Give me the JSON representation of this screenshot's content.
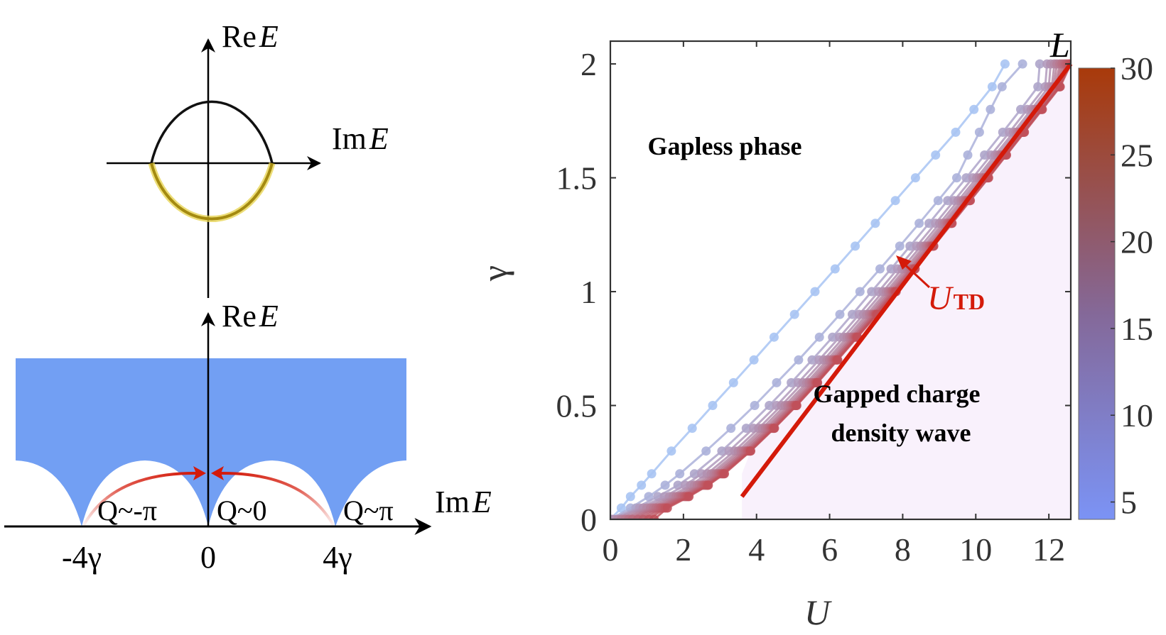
{
  "left_panel": {
    "top_diagram": {
      "y_axis_label": {
        "prefix": "Re",
        "var": "E"
      },
      "x_axis_label": {
        "prefix": "Im",
        "var": "E"
      },
      "upper_arc_color": "#111111",
      "lower_arc_color": "#B39A1E",
      "lower_arc_glow": "#E6D24A"
    },
    "bottom_diagram": {
      "y_axis_label": {
        "prefix": "Re",
        "var": "E"
      },
      "x_axis_label": {
        "prefix": "Im",
        "var": "E"
      },
      "region_color": "#729FF3",
      "arrow_color": "#D41A0A",
      "q_labels": [
        "Q~-π",
        "Q~0",
        "Q~π"
      ],
      "x_ticks": [
        "-4γ",
        "0",
        "4γ"
      ]
    }
  },
  "chart_data": {
    "type": "line",
    "xlabel": "U",
    "ylabel": "γ",
    "xlim": [
      0,
      12.6
    ],
    "ylim": [
      0,
      2.1
    ],
    "xticks": [
      0,
      2,
      4,
      6,
      8,
      10,
      12
    ],
    "xtick_labels": [
      "0",
      "2",
      "4",
      "6",
      "8",
      "10",
      "12"
    ],
    "yticks": [
      0,
      0.5,
      1,
      1.5,
      2
    ],
    "ytick_labels": [
      "0",
      "0.5",
      "1",
      "1.5",
      "2"
    ],
    "grid": false,
    "annotations": {
      "gapless": "Gapless phase",
      "gapped_line1": "Gapped charge",
      "gapped_line2": "density wave",
      "utd_main": "U",
      "utd_sub": "TD"
    },
    "gapped_region_color": "#F9F1FC",
    "colorbar": {
      "label": "L",
      "range": [
        4,
        30
      ],
      "ticks": [
        5,
        10,
        15,
        20,
        25,
        30
      ],
      "tick_labels": [
        "5",
        "10",
        "15",
        "20",
        "25",
        "30"
      ],
      "color_low": "#7B93F5",
      "color_high": "#A93A0A",
      "location": "right"
    },
    "utd_line": {
      "name": "U_TD",
      "color": "#D41A0A",
      "x": [
        3.6,
        12.6
      ],
      "y": [
        0.1,
        2.0
      ]
    },
    "series_color_low": "#A8C4F3",
    "series_color_high": "#C0505A",
    "series": [
      {
        "name": "L=4",
        "L": 4,
        "gamma": [
          0,
          0.05,
          0.1,
          0.15,
          0.2,
          0.3,
          0.4,
          0.5,
          0.6,
          0.7,
          0.8,
          0.9,
          1.0,
          1.1,
          1.2,
          1.3,
          1.4,
          1.5,
          1.6,
          1.7,
          1.8,
          1.9,
          2.0
        ],
        "U": [
          0,
          0.3,
          0.55,
          0.85,
          1.13,
          1.67,
          2.24,
          2.8,
          3.37,
          3.93,
          4.48,
          5.04,
          5.6,
          6.15,
          6.7,
          7.25,
          7.8,
          8.35,
          8.9,
          9.45,
          9.95,
          10.45,
          10.8
        ]
      },
      {
        "name": "L=6",
        "L": 6,
        "gamma": [
          0,
          0.05,
          0.1,
          0.15,
          0.2,
          0.3,
          0.4,
          0.5,
          0.6,
          0.7,
          0.8,
          0.9,
          1.0,
          1.1,
          1.2,
          1.3,
          1.4,
          1.5,
          1.6,
          1.7,
          1.8,
          1.9,
          2.0
        ],
        "U": [
          0,
          0.55,
          1.05,
          1.5,
          1.9,
          2.62,
          3.3,
          3.95,
          4.55,
          5.15,
          5.72,
          6.28,
          6.83,
          7.38,
          7.92,
          8.45,
          8.97,
          9.48,
          9.78,
          10.1,
          10.4,
          10.72,
          11.28
        ]
      },
      {
        "name": "L=8",
        "L": 8,
        "gamma": [
          0,
          0.05,
          0.1,
          0.15,
          0.2,
          0.3,
          0.4,
          0.5,
          0.6,
          0.7,
          0.8,
          0.9,
          1.0,
          1.1,
          1.2,
          1.3,
          1.4,
          1.5,
          1.6,
          1.7,
          1.8,
          1.9,
          2.0
        ],
        "U": [
          0,
          0.7,
          1.3,
          1.85,
          2.3,
          3.05,
          3.72,
          4.35,
          4.95,
          5.52,
          6.08,
          6.62,
          7.15,
          7.68,
          8.2,
          8.72,
          9.23,
          9.74,
          10.24,
          10.74,
          11.23,
          11.7,
          11.75
        ]
      },
      {
        "name": "L=10",
        "L": 10,
        "gamma": [
          0,
          0.05,
          0.1,
          0.15,
          0.2,
          0.3,
          0.4,
          0.5,
          0.6,
          0.7,
          0.8,
          0.9,
          1.0,
          1.1,
          1.2,
          1.3,
          1.4,
          1.5,
          1.6,
          1.7,
          1.8,
          1.9,
          2.0
        ],
        "U": [
          0.05,
          0.8,
          1.48,
          2.05,
          2.5,
          3.25,
          3.92,
          4.55,
          5.14,
          5.71,
          6.27,
          6.81,
          7.34,
          7.86,
          8.38,
          8.9,
          9.41,
          9.92,
          10.42,
          10.92,
          11.41,
          11.9,
          11.95
        ]
      },
      {
        "name": "L=12",
        "L": 12,
        "gamma": [
          0,
          0.05,
          0.1,
          0.15,
          0.2,
          0.3,
          0.4,
          0.5,
          0.6,
          0.7,
          0.8,
          0.9,
          1.0,
          1.1,
          1.2,
          1.3,
          1.4,
          1.5,
          1.6,
          1.7,
          1.8,
          1.9,
          2.0
        ],
        "U": [
          0.1,
          0.9,
          1.62,
          2.2,
          2.65,
          3.4,
          4.06,
          4.68,
          5.27,
          5.84,
          6.39,
          6.93,
          7.46,
          7.98,
          8.5,
          9.01,
          9.52,
          10.03,
          10.53,
          11.03,
          11.52,
          12.0,
          12.05
        ]
      },
      {
        "name": "L=14",
        "L": 14,
        "gamma": [
          0,
          0.05,
          0.1,
          0.15,
          0.2,
          0.3,
          0.4,
          0.5,
          0.6,
          0.7,
          0.8,
          0.9,
          1.0,
          1.1,
          1.2,
          1.3,
          1.4,
          1.5,
          1.6,
          1.7,
          1.8,
          1.9,
          2.0
        ],
        "U": [
          0.2,
          1.0,
          1.72,
          2.3,
          2.76,
          3.5,
          4.16,
          4.78,
          5.37,
          5.93,
          6.48,
          7.02,
          7.55,
          8.07,
          8.58,
          9.09,
          9.6,
          10.1,
          10.6,
          11.1,
          11.59,
          12.08,
          12.15
        ]
      },
      {
        "name": "L=16",
        "L": 16,
        "gamma": [
          0,
          0.05,
          0.1,
          0.15,
          0.2,
          0.3,
          0.4,
          0.5,
          0.6,
          0.7,
          0.8,
          0.9,
          1.0,
          1.1,
          1.2,
          1.3,
          1.4,
          1.5,
          1.6,
          1.7,
          1.8,
          1.9,
          2.0
        ],
        "U": [
          0.3,
          1.1,
          1.8,
          2.38,
          2.84,
          3.58,
          4.24,
          4.86,
          5.44,
          6.0,
          6.55,
          7.09,
          7.61,
          8.13,
          8.64,
          9.15,
          9.66,
          10.16,
          10.66,
          11.15,
          11.64,
          12.13,
          12.22
        ]
      },
      {
        "name": "L=18",
        "L": 18,
        "gamma": [
          0,
          0.05,
          0.1,
          0.15,
          0.2,
          0.3,
          0.4,
          0.5,
          0.6,
          0.7,
          0.8,
          0.9,
          1.0,
          1.1,
          1.2,
          1.3,
          1.4,
          1.5,
          1.6,
          1.7,
          1.8,
          1.9,
          2.0
        ],
        "U": [
          0.4,
          1.18,
          1.87,
          2.44,
          2.9,
          3.64,
          4.3,
          4.92,
          5.5,
          6.06,
          6.6,
          7.14,
          7.66,
          8.18,
          8.69,
          9.2,
          9.7,
          10.2,
          10.7,
          11.19,
          11.68,
          12.17,
          12.3
        ]
      },
      {
        "name": "L=20",
        "L": 20,
        "gamma": [
          0,
          0.05,
          0.1,
          0.15,
          0.2,
          0.3,
          0.4,
          0.5,
          0.6,
          0.7,
          0.8,
          0.9,
          1.0,
          1.1,
          1.2,
          1.3,
          1.4,
          1.5,
          1.6,
          1.7,
          1.8,
          1.9,
          2.0
        ],
        "U": [
          0.5,
          1.25,
          1.93,
          2.5,
          2.95,
          3.69,
          4.35,
          4.96,
          5.54,
          6.1,
          6.64,
          7.18,
          7.7,
          8.22,
          8.73,
          9.23,
          9.73,
          10.23,
          10.73,
          11.22,
          11.71,
          12.2,
          12.36
        ]
      },
      {
        "name": "L=22",
        "L": 22,
        "gamma": [
          0,
          0.05,
          0.1,
          0.15,
          0.2,
          0.3,
          0.4,
          0.5,
          0.6,
          0.7,
          0.8,
          0.9,
          1.0,
          1.1,
          1.2,
          1.3,
          1.4,
          1.5,
          1.6,
          1.7,
          1.8,
          1.9,
          2.0
        ],
        "U": [
          0.6,
          1.32,
          1.98,
          2.54,
          2.99,
          3.73,
          4.39,
          5.0,
          5.58,
          6.13,
          6.67,
          7.21,
          7.73,
          8.25,
          8.76,
          9.26,
          9.76,
          10.26,
          10.76,
          11.25,
          11.74,
          12.23,
          12.42
        ]
      },
      {
        "name": "L=24",
        "L": 24,
        "gamma": [
          0,
          0.05,
          0.1,
          0.15,
          0.2,
          0.3,
          0.4,
          0.5,
          0.6,
          0.7,
          0.8,
          0.9,
          1.0,
          1.1,
          1.2,
          1.3,
          1.4,
          1.5,
          1.6,
          1.7,
          1.8,
          1.9,
          2.0
        ],
        "U": [
          0.75,
          1.38,
          2.03,
          2.58,
          3.03,
          3.76,
          4.42,
          5.03,
          5.61,
          6.16,
          6.7,
          7.24,
          7.76,
          8.28,
          8.79,
          9.29,
          9.79,
          10.29,
          10.78,
          11.27,
          11.76,
          12.25,
          12.47
        ]
      },
      {
        "name": "L=26",
        "L": 26,
        "gamma": [
          0,
          0.05,
          0.1,
          0.15,
          0.2,
          0.3,
          0.4,
          0.5,
          0.6,
          0.7,
          0.8,
          0.9,
          1.0,
          1.1,
          1.2,
          1.3,
          1.4,
          1.5,
          1.6,
          1.7,
          1.8,
          1.9,
          2.0
        ],
        "U": [
          0.9,
          1.44,
          2.07,
          2.62,
          3.06,
          3.79,
          4.45,
          5.06,
          5.63,
          6.18,
          6.72,
          7.26,
          7.78,
          8.3,
          8.81,
          9.31,
          9.81,
          10.31,
          10.8,
          11.29,
          11.78,
          12.27,
          12.52
        ]
      },
      {
        "name": "L=28",
        "L": 28,
        "gamma": [
          0,
          0.05,
          0.1,
          0.15,
          0.2,
          0.3,
          0.4,
          0.5,
          0.6,
          0.7,
          0.8,
          0.9,
          1.0,
          1.1,
          1.2,
          1.3,
          1.4,
          1.5,
          1.6,
          1.7,
          1.8,
          1.9,
          2.0
        ],
        "U": [
          1.05,
          1.5,
          2.11,
          2.65,
          3.09,
          3.82,
          4.47,
          5.08,
          5.65,
          6.2,
          6.74,
          7.28,
          7.8,
          8.32,
          8.83,
          9.33,
          9.83,
          10.33,
          10.82,
          11.31,
          11.8,
          12.29,
          12.56
        ]
      },
      {
        "name": "L=30",
        "L": 30,
        "gamma": [
          0,
          0.05,
          0.1,
          0.15,
          0.2,
          0.3,
          0.4,
          0.5,
          0.6,
          0.7,
          0.8,
          0.9,
          1.0,
          1.1,
          1.2,
          1.3,
          1.4,
          1.5,
          1.6,
          1.7,
          1.8,
          1.9,
          2.0
        ],
        "U": [
          1.2,
          1.56,
          2.15,
          2.68,
          3.12,
          3.84,
          4.49,
          5.1,
          5.67,
          6.22,
          6.76,
          7.3,
          7.82,
          8.34,
          8.85,
          9.35,
          9.85,
          10.35,
          10.84,
          11.33,
          11.82,
          12.31,
          12.6
        ]
      }
    ]
  }
}
